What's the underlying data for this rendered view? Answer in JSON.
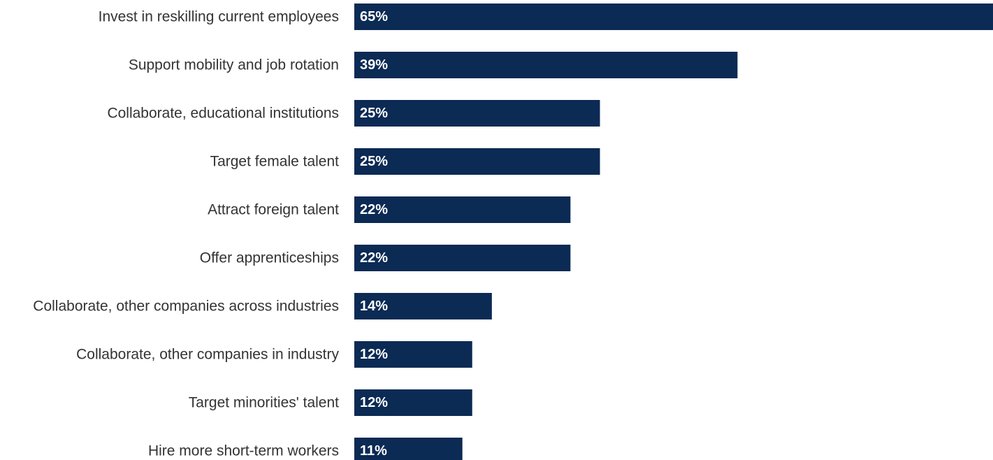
{
  "chart_data": {
    "type": "bar",
    "orientation": "horizontal",
    "title": "",
    "xlabel": "",
    "ylabel": "",
    "xlim": [
      0,
      65
    ],
    "grid": false,
    "legend": "none",
    "categories": [
      "Invest in reskilling current employees",
      "Support mobility and job rotation",
      "Collaborate, educational institutions",
      "Target female talent",
      "Attract foreign talent",
      "Offer apprenticeships",
      "Collaborate, other companies across industries",
      "Collaborate, other companies in industry",
      "Target minorities' talent",
      "Hire more short-term workers"
    ],
    "values": [
      65,
      39,
      25,
      25,
      22,
      22,
      14,
      12,
      12,
      11
    ],
    "value_labels": [
      "65%",
      "39%",
      "25%",
      "25%",
      "22%",
      "22%",
      "14%",
      "12%",
      "12%",
      "11%"
    ],
    "colors": {
      "bar": "#0b2a54",
      "label_text": "#333333",
      "value_text": "#ffffff"
    }
  }
}
